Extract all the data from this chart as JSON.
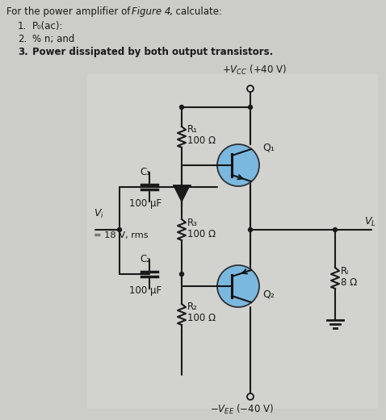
{
  "bg_color": "#ccccc8",
  "circuit_bg": "#d8d8d4",
  "title_text": "For the power amplifier of ",
  "title_italic": "Figure 4",
  "title_end": ", calculate:",
  "item1": "P₀(ac):",
  "item2": "% n; and",
  "item3": "Power dissipated by both output transistors.",
  "vcc_label": "+40 V",
  "vee_label": "−40 V",
  "vi_val": "= 18 V, rms",
  "r1_label": "R₁",
  "r1_val": "100 Ω",
  "r2_label": "R₂",
  "r2_val": "100 Ω",
  "r3_label": "R₃",
  "r3_val": "100 Ω",
  "rl_label": "Rₗ",
  "rl_val": "8 Ω",
  "c1_label": "C₁",
  "c1_val": "100 μF",
  "c2_label": "C₂",
  "c2_val": "100 μF",
  "q1_label": "Q₁",
  "q2_label": "Q₂",
  "transistor_color": "#7ab8e0",
  "wire_color": "#1a1a1a",
  "text_color": "#1a1a1a",
  "diode_color": "#2a2a2a"
}
